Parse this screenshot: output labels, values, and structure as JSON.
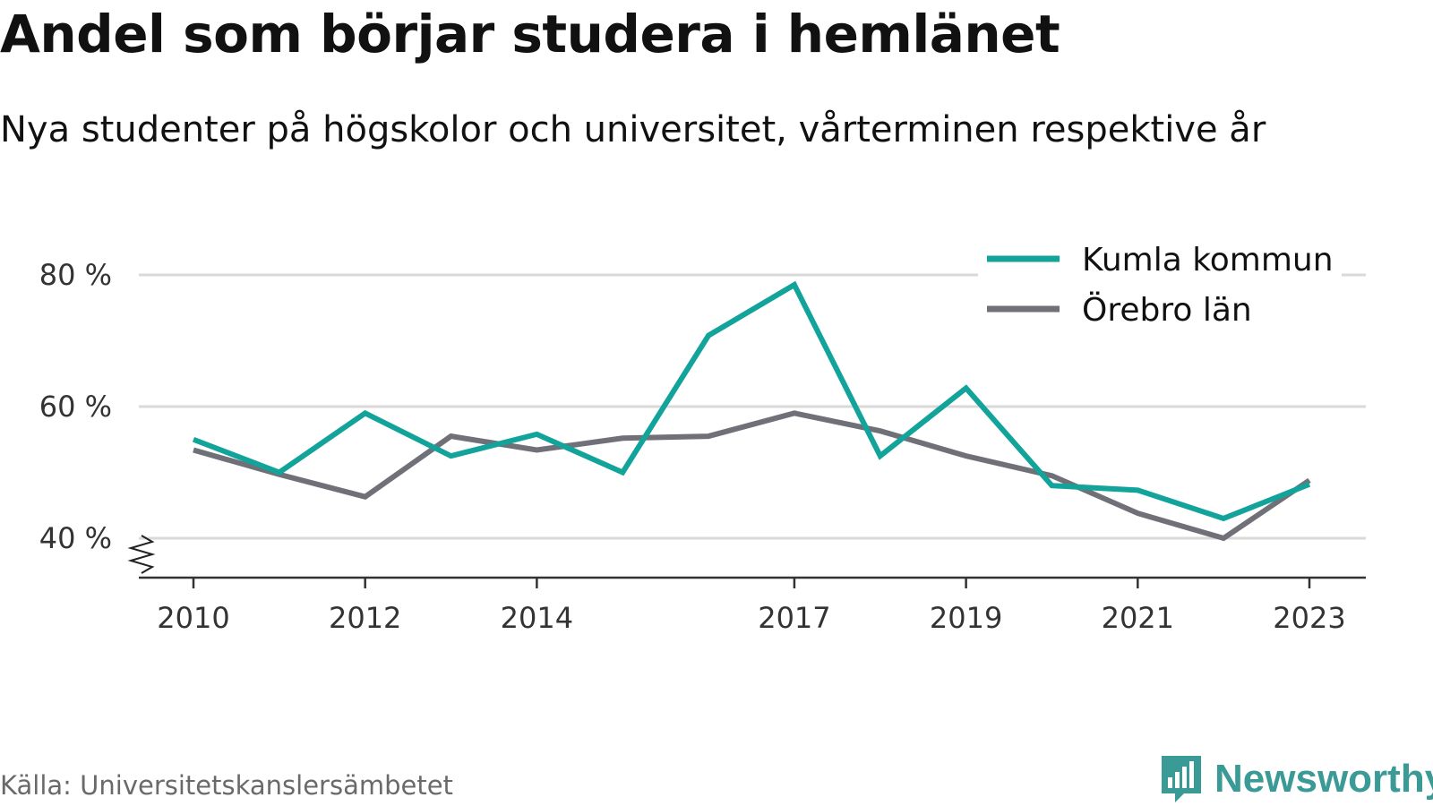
{
  "header": {
    "title": "Andel som börjar studera i hemlänet",
    "subtitle": "Nya studenter på högskolor och universitet, vårterminen respektive år"
  },
  "footer": {
    "source": "Källa: Universitetskanslersämbetet",
    "brand": "Newsworthy",
    "brand_icon": "chart-bubble-icon"
  },
  "colors": {
    "kumla": "#12a39a",
    "orebro": "#707078",
    "grid": "#d9d9d9",
    "axis": "#333333",
    "brand": "#3a9a96"
  },
  "chart_data": {
    "type": "line",
    "x": [
      2010,
      2011,
      2012,
      2013,
      2014,
      2015,
      2016,
      2017,
      2018,
      2019,
      2020,
      2021,
      2022,
      2023
    ],
    "x_tick_values": [
      2010,
      2012,
      2014,
      2017,
      2019,
      2021,
      2023
    ],
    "x_tick_labels": [
      "2010",
      "2012",
      "2014",
      "2017",
      "2019",
      "2021",
      "2023"
    ],
    "y_tick_values": [
      40,
      60,
      80
    ],
    "y_tick_labels": [
      "40 %",
      "60 %",
      "80 %"
    ],
    "ylim": [
      34,
      90
    ],
    "y_axis_break": true,
    "grid": true,
    "legend_position": "top-right",
    "series": [
      {
        "name": "Kumla kommun",
        "color": "#12a39a",
        "values": [
          55,
          50,
          59,
          52.5,
          55.8,
          50,
          70.8,
          78.5,
          52.5,
          62.8,
          48,
          47.3,
          43,
          48.2
        ]
      },
      {
        "name": "Örebro län",
        "color": "#707078",
        "values": [
          53.4,
          49.7,
          46.3,
          55.5,
          53.4,
          55.2,
          55.5,
          59,
          56.3,
          52.5,
          49.5,
          43.8,
          40,
          48.8
        ]
      }
    ]
  }
}
